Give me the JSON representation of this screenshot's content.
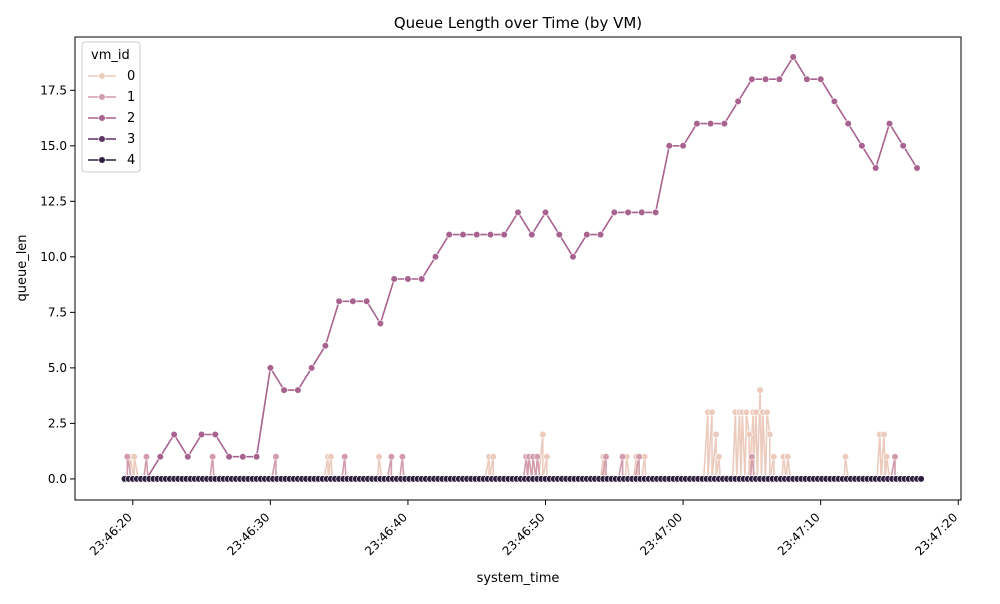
{
  "chart_data": {
    "type": "line",
    "title": "Queue Length over Time (by VM)",
    "xlabel": "system_time",
    "ylabel": "queue_len",
    "x_ticks": [
      "23:46:20",
      "23:46:30",
      "23:46:40",
      "23:46:50",
      "23:47:00",
      "23:47:10",
      "23:47:20"
    ],
    "y_ticks": [
      "0.0",
      "2.5",
      "5.0",
      "7.5",
      "10.0",
      "12.5",
      "15.0",
      "17.5"
    ],
    "x_range_seconds": [
      "23:46:15.8",
      "23:47:20.2"
    ],
    "ylim": [
      -0.95,
      19.9
    ],
    "grid": false,
    "legend_title": "vm_id",
    "legend_position": "top-left",
    "series": [
      {
        "name": "0",
        "color": "#eccbbd",
        "points": [
          [
            "23:46:19.8",
            1
          ],
          [
            "23:46:20.1",
            1
          ],
          [
            "23:46:21.2",
            0
          ],
          [
            "23:46:34.2",
            1
          ],
          [
            "23:46:34.4",
            1
          ],
          [
            "23:46:37.9",
            1
          ],
          [
            "23:46:45.9",
            1
          ],
          [
            "23:46:46.2",
            1
          ],
          [
            "23:46:49.8",
            2
          ],
          [
            "23:46:50.1",
            1
          ],
          [
            "23:46:54.2",
            1
          ],
          [
            "23:46:55.9",
            1
          ],
          [
            "23:46:56.6",
            1
          ],
          [
            "23:46:57.2",
            1
          ],
          [
            "23:47:01.8",
            3
          ],
          [
            "23:47:02.1",
            3
          ],
          [
            "23:47:02.4",
            2
          ],
          [
            "23:47:02.6",
            1
          ],
          [
            "23:47:03.8",
            3
          ],
          [
            "23:47:04.1",
            3
          ],
          [
            "23:47:04.3",
            3
          ],
          [
            "23:47:04.6",
            3
          ],
          [
            "23:47:04.8",
            2
          ],
          [
            "23:47:05.1",
            3
          ],
          [
            "23:47:05.3",
            3
          ],
          [
            "23:47:05.6",
            4
          ],
          [
            "23:47:05.8",
            3
          ],
          [
            "23:47:06.1",
            3
          ],
          [
            "23:47:06.3",
            2
          ],
          [
            "23:47:06.6",
            1
          ],
          [
            "23:47:07.3",
            1
          ],
          [
            "23:47:07.6",
            1
          ],
          [
            "23:47:11.8",
            1
          ],
          [
            "23:47:14.3",
            2
          ],
          [
            "23:47:14.6",
            2
          ],
          [
            "23:47:14.8",
            1
          ],
          [
            "23:47:17.2",
            0
          ]
        ]
      },
      {
        "name": "1",
        "color": "#d29cab",
        "points": [
          [
            "23:46:19.6",
            1
          ],
          [
            "23:46:21.0",
            1
          ],
          [
            "23:46:25.8",
            1
          ],
          [
            "23:46:30.4",
            1
          ],
          [
            "23:46:35.4",
            1
          ],
          [
            "23:46:38.8",
            1
          ],
          [
            "23:46:39.6",
            1
          ],
          [
            "23:46:48.6",
            1
          ],
          [
            "23:46:48.8",
            1
          ],
          [
            "23:46:49.1",
            1
          ],
          [
            "23:46:49.4",
            1
          ],
          [
            "23:46:54.4",
            1
          ],
          [
            "23:46:55.6",
            1
          ],
          [
            "23:46:56.8",
            1
          ],
          [
            "23:47:05.0",
            1
          ],
          [
            "23:47:15.4",
            1
          ],
          [
            "23:47:17.2",
            0
          ]
        ]
      },
      {
        "name": "2",
        "color": "#a8628f",
        "points": [
          [
            "23:46:20.0",
            0
          ],
          [
            "23:46:21.0",
            0
          ],
          [
            "23:46:22.0",
            1
          ],
          [
            "23:46:23.0",
            2
          ],
          [
            "23:46:24.0",
            1
          ],
          [
            "23:46:25.0",
            2
          ],
          [
            "23:46:26.0",
            2
          ],
          [
            "23:46:27.0",
            1
          ],
          [
            "23:46:28.0",
            1
          ],
          [
            "23:46:29.0",
            1
          ],
          [
            "23:46:30.0",
            5
          ],
          [
            "23:46:31.0",
            4
          ],
          [
            "23:46:32.0",
            4
          ],
          [
            "23:46:33.0",
            5
          ],
          [
            "23:46:34.0",
            6
          ],
          [
            "23:46:35.0",
            8
          ],
          [
            "23:46:36.0",
            8
          ],
          [
            "23:46:37.0",
            8
          ],
          [
            "23:46:38.0",
            7
          ],
          [
            "23:46:39.0",
            9
          ],
          [
            "23:46:40.0",
            9
          ],
          [
            "23:46:41.0",
            9
          ],
          [
            "23:46:42.0",
            10
          ],
          [
            "23:46:43.0",
            11
          ],
          [
            "23:46:44.0",
            11
          ],
          [
            "23:46:45.0",
            11
          ],
          [
            "23:46:46.0",
            11
          ],
          [
            "23:46:47.0",
            11
          ],
          [
            "23:46:48.0",
            12
          ],
          [
            "23:46:49.0",
            11
          ],
          [
            "23:46:50.0",
            12
          ],
          [
            "23:46:51.0",
            11
          ],
          [
            "23:46:52.0",
            10
          ],
          [
            "23:46:53.0",
            11
          ],
          [
            "23:46:54.0",
            11
          ],
          [
            "23:46:55.0",
            12
          ],
          [
            "23:46:56.0",
            12
          ],
          [
            "23:46:57.0",
            12
          ],
          [
            "23:46:58.0",
            12
          ],
          [
            "23:46:59.0",
            15
          ],
          [
            "23:47:00.0",
            15
          ],
          [
            "23:47:01.0",
            16
          ],
          [
            "23:47:02.0",
            16
          ],
          [
            "23:47:03.0",
            16
          ],
          [
            "23:47:04.0",
            17
          ],
          [
            "23:47:05.0",
            18
          ],
          [
            "23:47:06.0",
            18
          ],
          [
            "23:47:07.0",
            18
          ],
          [
            "23:47:08.0",
            19
          ],
          [
            "23:47:09.0",
            18
          ],
          [
            "23:47:10.0",
            18
          ],
          [
            "23:47:11.0",
            17
          ],
          [
            "23:47:12.0",
            16
          ],
          [
            "23:47:13.0",
            15
          ],
          [
            "23:47:14.0",
            14
          ],
          [
            "23:47:15.0",
            16
          ],
          [
            "23:47:16.0",
            15
          ],
          [
            "23:47:17.0",
            14
          ]
        ]
      },
      {
        "name": "3",
        "color": "#5f3165",
        "points": [
          [
            "23:46:19.4",
            0
          ],
          [
            "23:47:17.2",
            0
          ]
        ]
      },
      {
        "name": "4",
        "color": "#2d1e3e",
        "points": [
          [
            "23:46:19.4",
            0
          ],
          [
            "23:47:17.3",
            0
          ]
        ]
      }
    ]
  }
}
